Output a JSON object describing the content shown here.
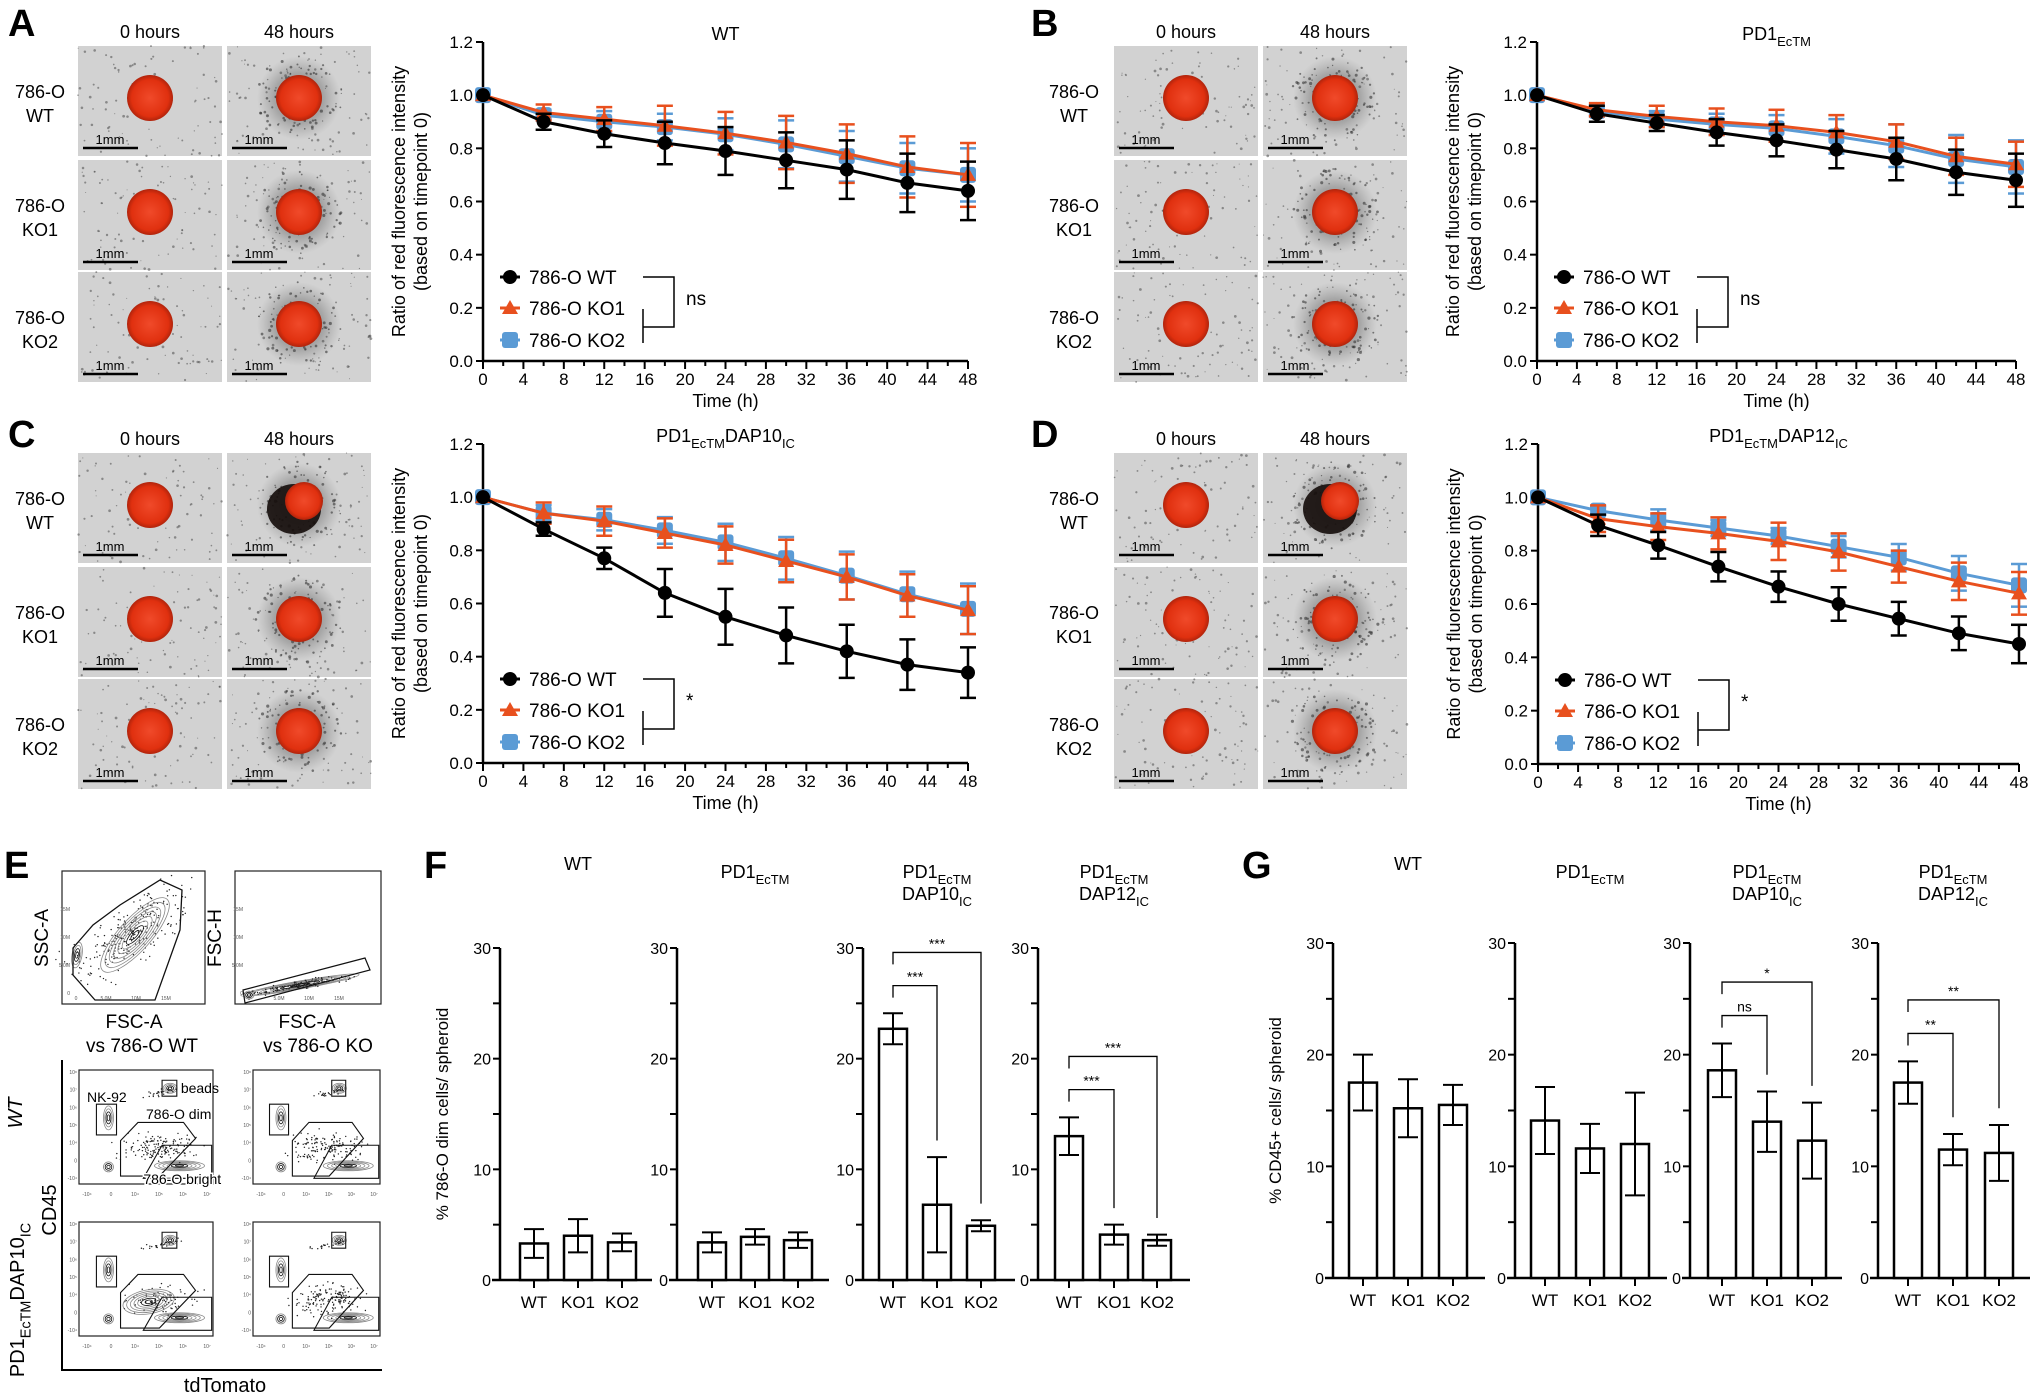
{
  "colors": {
    "wt": "#000000",
    "ko1": "#e8501e",
    "ko2": "#5b9bd5",
    "spheroid": "#e02a12"
  },
  "figure_panels": {
    "A": {
      "label": "A",
      "col_headers": [
        "0 hours",
        "48 hours"
      ],
      "row_labels": [
        [
          "786-O",
          "WT"
        ],
        [
          "786-O",
          "KO1"
        ],
        [
          "786-O",
          "KO2"
        ]
      ],
      "scale_bar": "1mm"
    },
    "B": {
      "label": "B",
      "col_headers": [
        "0 hours",
        "48 hours"
      ],
      "row_labels": [
        [
          "786-O",
          "WT"
        ],
        [
          "786-O",
          "KO1"
        ],
        [
          "786-O",
          "KO2"
        ]
      ],
      "scale_bar": "1mm"
    },
    "C": {
      "label": "C",
      "col_headers": [
        "0 hours",
        "48 hours"
      ],
      "row_labels": [
        [
          "786-O",
          "WT"
        ],
        [
          "786-O",
          "KO1"
        ],
        [
          "786-O",
          "KO2"
        ]
      ],
      "scale_bar": "1mm"
    },
    "D": {
      "label": "D",
      "col_headers": [
        "0 hours",
        "48 hours"
      ],
      "row_labels": [
        [
          "786-O",
          "WT"
        ],
        [
          "786-O",
          "KO1"
        ],
        [
          "786-O",
          "KO2"
        ]
      ],
      "scale_bar": "1mm"
    }
  },
  "panel_E": {
    "label": "E",
    "gating_plots": [
      {
        "y_label": "SSC-A",
        "x_label": "FSC-A",
        "ticks": [
          "0",
          "5.0M",
          "10M",
          "15M"
        ]
      },
      {
        "y_label": "FSC-H",
        "x_label": "FSC-A",
        "ticks": [
          "0",
          "5.0M",
          "10M",
          "15M"
        ]
      }
    ],
    "column_headers": [
      "vs 786-O WT",
      "vs 786-O KO"
    ],
    "row_label_wt": "WT",
    "row_label_car": [
      {
        "text": "PD1"
      },
      {
        "text": "EcTM",
        "sub": true
      },
      {
        "text": "DAP10"
      },
      {
        "text": "IC",
        "sub": true
      }
    ],
    "y_axis": "CD45",
    "x_axis": "tdTomato",
    "gate_labels": {
      "beads": "beads",
      "nk92": "NK-92",
      "dim": "786-O dim",
      "bright": "786-O bright"
    },
    "log_ticks_x": [
      "-10⁴",
      "0",
      "10⁴",
      "10⁵",
      "10⁶",
      "10⁷"
    ],
    "log_ticks_y": [
      "-10⁴",
      "0",
      "10⁴",
      "10⁵",
      "10⁶",
      "10⁷",
      "10⁸"
    ]
  },
  "panel_F": {
    "label": "F"
  },
  "panel_G": {
    "label": "G"
  },
  "chart_data": [
    {
      "panel": "A",
      "type": "line",
      "title": [
        {
          "text": "WT"
        }
      ],
      "xlabel": "Time (h)",
      "ylabel": [
        "Ratio of red fluorescence intensity",
        "(based on timepoint 0)"
      ],
      "xlim": [
        0,
        48
      ],
      "ylim": [
        0,
        1.2
      ],
      "x_ticks": [
        "0",
        "4",
        "8",
        "12",
        "16",
        "20",
        "24",
        "28",
        "32",
        "36",
        "40",
        "44",
        "48"
      ],
      "y_ticks": [
        "0.0",
        "0.2",
        "0.4",
        "0.6",
        "0.8",
        "1.0",
        "1.2"
      ],
      "x": [
        0,
        6,
        12,
        18,
        24,
        30,
        36,
        42,
        48
      ],
      "series": [
        {
          "name": "786-O WT",
          "color": "#000000",
          "marker": "circle",
          "values": [
            1.0,
            0.9,
            0.855,
            0.82,
            0.79,
            0.755,
            0.72,
            0.67,
            0.64
          ],
          "errors": [
            0,
            0.03,
            0.05,
            0.08,
            0.09,
            0.105,
            0.11,
            0.11,
            0.11
          ]
        },
        {
          "name": "786-O KO1",
          "color": "#e8501e",
          "marker": "triangle",
          "values": [
            1.0,
            0.935,
            0.91,
            0.885,
            0.857,
            0.822,
            0.78,
            0.73,
            0.7
          ],
          "errors": [
            0,
            0.03,
            0.045,
            0.075,
            0.08,
            0.1,
            0.11,
            0.115,
            0.12
          ]
        },
        {
          "name": "786-O KO2",
          "color": "#5b9bd5",
          "marker": "square",
          "values": [
            1.0,
            0.925,
            0.9,
            0.88,
            0.853,
            0.815,
            0.77,
            0.725,
            0.7
          ],
          "errors": [
            0,
            0.02,
            0.04,
            0.05,
            0.06,
            0.09,
            0.095,
            0.095,
            0.1
          ]
        }
      ],
      "significance": "ns",
      "legend": "bottom-left"
    },
    {
      "panel": "B",
      "type": "line",
      "title": [
        {
          "text": "PD1"
        },
        {
          "text": "EcTM",
          "sub": true
        }
      ],
      "xlabel": "Time (h)",
      "ylabel": [
        "Ratio of red fluorescence intensity",
        "(based on timepoint 0)"
      ],
      "xlim": [
        0,
        48
      ],
      "ylim": [
        0,
        1.2
      ],
      "x_ticks": [
        "0",
        "4",
        "8",
        "12",
        "16",
        "20",
        "24",
        "28",
        "32",
        "36",
        "40",
        "44",
        "48"
      ],
      "y_ticks": [
        "0.0",
        "0.2",
        "0.4",
        "0.6",
        "0.8",
        "1.0",
        "1.2"
      ],
      "x": [
        0,
        6,
        12,
        18,
        24,
        30,
        36,
        42,
        48
      ],
      "series": [
        {
          "name": "786-O WT",
          "color": "#000000",
          "marker": "circle",
          "values": [
            1.0,
            0.93,
            0.895,
            0.86,
            0.83,
            0.795,
            0.76,
            0.71,
            0.68
          ],
          "errors": [
            0,
            0.03,
            0.03,
            0.05,
            0.06,
            0.07,
            0.08,
            0.085,
            0.1
          ]
        },
        {
          "name": "786-O KO1",
          "color": "#e8501e",
          "marker": "triangle",
          "values": [
            1.0,
            0.945,
            0.92,
            0.9,
            0.885,
            0.86,
            0.825,
            0.77,
            0.74
          ],
          "errors": [
            0,
            0.025,
            0.04,
            0.05,
            0.06,
            0.065,
            0.065,
            0.07,
            0.085
          ]
        },
        {
          "name": "786-O KO2",
          "color": "#5b9bd5",
          "marker": "square",
          "values": [
            1.0,
            0.94,
            0.91,
            0.89,
            0.875,
            0.845,
            0.81,
            0.76,
            0.73
          ],
          "errors": [
            0,
            0.02,
            0.03,
            0.04,
            0.05,
            0.065,
            0.08,
            0.09,
            0.1
          ]
        }
      ],
      "significance": "ns",
      "legend": "bottom-left"
    },
    {
      "panel": "C",
      "type": "line",
      "title": [
        {
          "text": "PD1"
        },
        {
          "text": "EcTM",
          "sub": true
        },
        {
          "text": "DAP10"
        },
        {
          "text": "IC",
          "sub": true
        }
      ],
      "xlabel": "Time (h)",
      "ylabel": [
        "Ratio of red fluorescence intensity",
        "(based on timepoint 0)"
      ],
      "xlim": [
        0,
        48
      ],
      "ylim": [
        0,
        1.2
      ],
      "x_ticks": [
        "0",
        "4",
        "8",
        "12",
        "16",
        "20",
        "24",
        "28",
        "32",
        "36",
        "40",
        "44",
        "48"
      ],
      "y_ticks": [
        "0.0",
        "0.2",
        "0.4",
        "0.6",
        "0.8",
        "1.0",
        "1.2"
      ],
      "x": [
        0,
        6,
        12,
        18,
        24,
        30,
        36,
        42,
        48
      ],
      "series": [
        {
          "name": "786-O WT",
          "color": "#000000",
          "marker": "circle",
          "values": [
            1.0,
            0.88,
            0.77,
            0.64,
            0.55,
            0.48,
            0.42,
            0.37,
            0.34
          ],
          "errors": [
            0,
            0.025,
            0.04,
            0.09,
            0.105,
            0.105,
            0.1,
            0.095,
            0.095
          ]
        },
        {
          "name": "786-O KO1",
          "color": "#e8501e",
          "marker": "triangle",
          "values": [
            1.0,
            0.94,
            0.91,
            0.865,
            0.82,
            0.76,
            0.7,
            0.63,
            0.575
          ],
          "errors": [
            0,
            0.04,
            0.055,
            0.055,
            0.07,
            0.08,
            0.085,
            0.08,
            0.09
          ]
        },
        {
          "name": "786-O KO2",
          "color": "#5b9bd5",
          "marker": "square",
          "values": [
            1.0,
            0.94,
            0.915,
            0.875,
            0.83,
            0.77,
            0.705,
            0.635,
            0.58
          ],
          "errors": [
            0,
            0.03,
            0.04,
            0.05,
            0.07,
            0.08,
            0.09,
            0.085,
            0.095
          ]
        }
      ],
      "significance": "*",
      "legend": "bottom-left"
    },
    {
      "panel": "D",
      "type": "line",
      "title": [
        {
          "text": "PD1"
        },
        {
          "text": "EcTM",
          "sub": true
        },
        {
          "text": "DAP12"
        },
        {
          "text": "IC",
          "sub": true
        }
      ],
      "xlabel": "Time (h)",
      "ylabel": [
        "Ratio of red fluorescence intensity",
        "(based on timepoint 0)"
      ],
      "xlim": [
        0,
        48
      ],
      "ylim": [
        0,
        1.2
      ],
      "x_ticks": [
        "0",
        "4",
        "8",
        "12",
        "16",
        "20",
        "24",
        "28",
        "32",
        "36",
        "40",
        "44",
        "48"
      ],
      "y_ticks": [
        "0.0",
        "0.2",
        "0.4",
        "0.6",
        "0.8",
        "1.0",
        "1.2"
      ],
      "x": [
        0,
        6,
        12,
        18,
        24,
        30,
        36,
        42,
        48
      ],
      "series": [
        {
          "name": "786-O WT",
          "color": "#000000",
          "marker": "circle",
          "values": [
            1.0,
            0.895,
            0.82,
            0.74,
            0.665,
            0.6,
            0.545,
            0.49,
            0.45
          ],
          "errors": [
            0,
            0.04,
            0.05,
            0.055,
            0.057,
            0.063,
            0.063,
            0.063,
            0.072
          ]
        },
        {
          "name": "786-O KO1",
          "color": "#e8501e",
          "marker": "triangle",
          "values": [
            1.0,
            0.92,
            0.89,
            0.865,
            0.835,
            0.795,
            0.74,
            0.685,
            0.64
          ],
          "errors": [
            0,
            0.05,
            0.05,
            0.06,
            0.07,
            0.07,
            0.06,
            0.07,
            0.08
          ]
        },
        {
          "name": "786-O KO2",
          "color": "#5b9bd5",
          "marker": "square",
          "values": [
            1.0,
            0.95,
            0.915,
            0.885,
            0.855,
            0.815,
            0.775,
            0.715,
            0.67
          ],
          "errors": [
            0,
            0.015,
            0.04,
            0.03,
            0.03,
            0.04,
            0.05,
            0.065,
            0.08
          ]
        }
      ],
      "significance": "*",
      "legend": "bottom-left"
    },
    {
      "panel": "F",
      "type": "bar",
      "title": [
        [
          {
            "text": "WT"
          }
        ]
      ],
      "ylabel": "% 786-O dim cells/ spheroid",
      "categories": [
        "WT",
        "KO1",
        "KO2"
      ],
      "values": [
        3.3,
        4.0,
        3.4
      ],
      "errors": [
        1.3,
        1.5,
        0.8
      ],
      "ylim": [
        0,
        30
      ],
      "y_ticks": [
        "0",
        "10",
        "20",
        "30"
      ],
      "comparisons": []
    },
    {
      "panel": "F",
      "type": "bar",
      "title": [
        [
          {
            "text": "PD1"
          },
          {
            "text": "EcTM",
            "sub": true
          }
        ]
      ],
      "ylabel": "",
      "categories": [
        "WT",
        "KO1",
        "KO2"
      ],
      "values": [
        3.4,
        3.9,
        3.6
      ],
      "errors": [
        0.9,
        0.7,
        0.7
      ],
      "ylim": [
        0,
        30
      ],
      "y_ticks": [
        "0",
        "10",
        "20",
        "30"
      ],
      "comparisons": []
    },
    {
      "panel": "F",
      "type": "bar",
      "title": [
        [
          {
            "text": "PD1"
          },
          {
            "text": "EcTM",
            "sub": true
          }
        ],
        [
          {
            "text": "DAP10"
          },
          {
            "text": "IC",
            "sub": true
          }
        ]
      ],
      "ylabel": "",
      "categories": [
        "WT",
        "KO1",
        "KO2"
      ],
      "values": [
        22.7,
        6.8,
        4.9
      ],
      "errors": [
        1.4,
        4.3,
        0.5
      ],
      "ylim": [
        0,
        30
      ],
      "y_ticks": [
        "0",
        "10",
        "20",
        "30"
      ],
      "comparisons": [
        {
          "from": "WT",
          "to": "KO1",
          "label": "***"
        },
        {
          "from": "WT",
          "to": "KO2",
          "label": "***"
        }
      ]
    },
    {
      "panel": "F",
      "type": "bar",
      "title": [
        [
          {
            "text": "PD1"
          },
          {
            "text": "EcTM",
            "sub": true
          }
        ],
        [
          {
            "text": "DAP12"
          },
          {
            "text": "IC",
            "sub": true
          }
        ]
      ],
      "ylabel": "",
      "categories": [
        "WT",
        "KO1",
        "KO2"
      ],
      "values": [
        13.0,
        4.1,
        3.6
      ],
      "errors": [
        1.7,
        0.9,
        0.5
      ],
      "ylim": [
        0,
        30
      ],
      "y_ticks": [
        "0",
        "10",
        "20",
        "30"
      ],
      "comparisons": [
        {
          "from": "WT",
          "to": "KO1",
          "label": "***"
        },
        {
          "from": "WT",
          "to": "KO2",
          "label": "***"
        }
      ]
    },
    {
      "panel": "G",
      "type": "bar",
      "title": [
        [
          {
            "text": "WT"
          }
        ]
      ],
      "ylabel": "% CD45+ cells/ spheroid",
      "categories": [
        "WT",
        "KO1",
        "KO2"
      ],
      "values": [
        17.5,
        15.2,
        15.5
      ],
      "errors": [
        2.5,
        2.6,
        1.8
      ],
      "ylim": [
        0,
        30
      ],
      "y_ticks": [
        "0",
        "10",
        "20",
        "30"
      ],
      "comparisons": []
    },
    {
      "panel": "G",
      "type": "bar",
      "title": [
        [
          {
            "text": "PD1"
          },
          {
            "text": "EcTM",
            "sub": true
          }
        ]
      ],
      "ylabel": "",
      "categories": [
        "WT",
        "KO1",
        "KO2"
      ],
      "values": [
        14.1,
        11.6,
        12.0
      ],
      "errors": [
        3.0,
        2.2,
        4.6
      ],
      "ylim": [
        0,
        30
      ],
      "y_ticks": [
        "0",
        "10",
        "20",
        "30"
      ],
      "comparisons": []
    },
    {
      "panel": "G",
      "type": "bar",
      "title": [
        [
          {
            "text": "PD1"
          },
          {
            "text": "EcTM",
            "sub": true
          }
        ],
        [
          {
            "text": "DAP10"
          },
          {
            "text": "IC",
            "sub": true
          }
        ]
      ],
      "ylabel": "",
      "categories": [
        "WT",
        "KO1",
        "KO2"
      ],
      "values": [
        18.6,
        14.0,
        12.3
      ],
      "errors": [
        2.4,
        2.7,
        3.4
      ],
      "ylim": [
        0,
        30
      ],
      "y_ticks": [
        "0",
        "10",
        "20",
        "30"
      ],
      "comparisons": [
        {
          "from": "WT",
          "to": "KO1",
          "label": "ns"
        },
        {
          "from": "WT",
          "to": "KO2",
          "label": "*"
        }
      ]
    },
    {
      "panel": "G",
      "type": "bar",
      "title": [
        [
          {
            "text": "PD1"
          },
          {
            "text": "EcTM",
            "sub": true
          }
        ],
        [
          {
            "text": "DAP12"
          },
          {
            "text": "IC",
            "sub": true
          }
        ]
      ],
      "ylabel": "",
      "categories": [
        "WT",
        "KO1",
        "KO2"
      ],
      "values": [
        17.5,
        11.5,
        11.2
      ],
      "errors": [
        1.9,
        1.4,
        2.5
      ],
      "ylim": [
        0,
        30
      ],
      "y_ticks": [
        "0",
        "10",
        "20",
        "30"
      ],
      "comparisons": [
        {
          "from": "WT",
          "to": "KO1",
          "label": "**"
        },
        {
          "from": "WT",
          "to": "KO2",
          "label": "**"
        }
      ]
    }
  ]
}
